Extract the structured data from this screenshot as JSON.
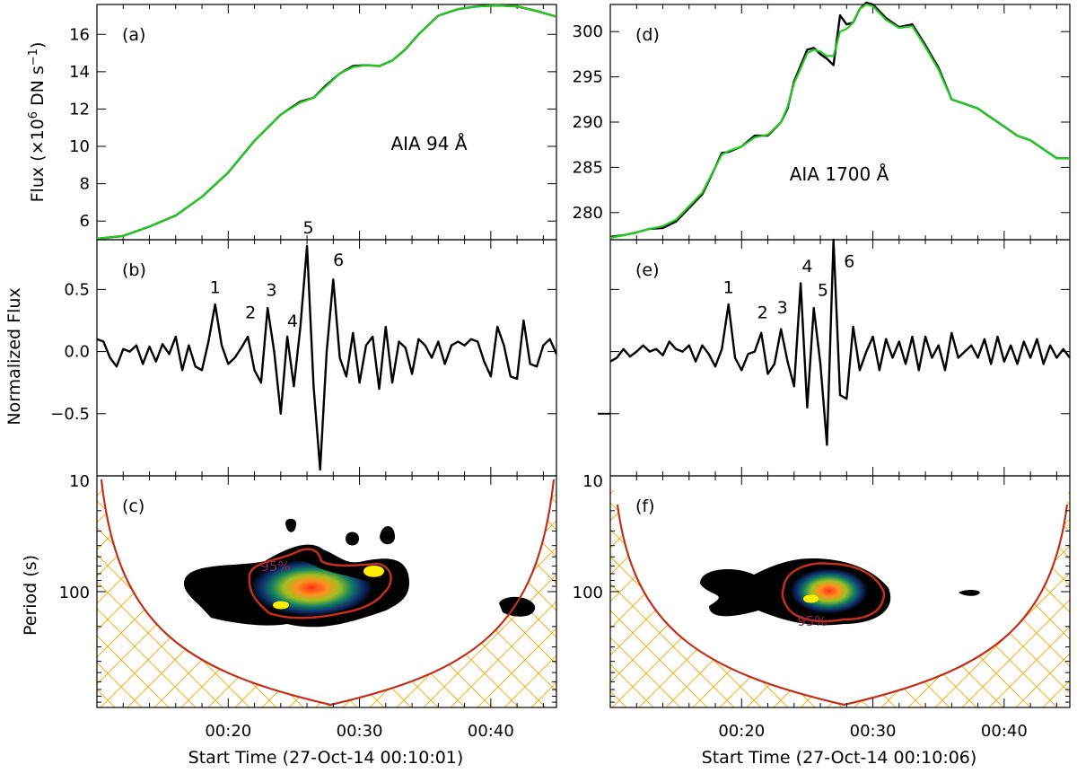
{
  "figure": {
    "shared_ylabels": {
      "top": "Flux (×10",
      "top_sup1": "6",
      "top_mid": " DN s",
      "top_sup2": "−1",
      "top_end": ")",
      "middle": "Normalized Flux",
      "bottom": "Period (s)"
    },
    "colors": {
      "raw_line": "#000000",
      "smooth_line": "#22cc22",
      "coi_line": "#c0301a",
      "hatch": "#f0b020",
      "contour_95": "#c0301a",
      "frame": "#000000"
    }
  },
  "chart_data": [
    {
      "panel": "a",
      "label": "(a)",
      "type": "line",
      "annotation": "AIA 94 Å",
      "ylim": [
        5,
        17.6
      ],
      "yticks": [
        6,
        8,
        10,
        12,
        14,
        16
      ],
      "ytick_labels": [
        "6",
        "8",
        "10",
        "12",
        "14",
        "16"
      ],
      "xlim": [
        10.0,
        45.0
      ],
      "series": [
        {
          "role": "raw",
          "x": [
            10.0,
            12.0,
            14.0,
            16.0,
            18.0,
            20.0,
            22.0,
            24.0,
            25.5,
            26.5,
            27.5,
            28.5,
            29.5,
            30.5,
            31.5,
            32.5,
            33.5,
            34.5,
            36.0,
            37.5,
            39.0,
            40.5,
            42.0,
            43.5,
            45.0
          ],
          "y": [
            5.05,
            5.2,
            5.7,
            6.3,
            7.3,
            8.6,
            10.3,
            11.7,
            12.4,
            12.6,
            13.3,
            13.9,
            14.3,
            14.35,
            14.3,
            14.6,
            15.2,
            16.0,
            17.0,
            17.35,
            17.5,
            17.55,
            17.5,
            17.25,
            16.95
          ]
        },
        {
          "role": "smoothed",
          "x": [
            10.0,
            12.0,
            14.0,
            16.0,
            18.0,
            20.0,
            22.0,
            24.0,
            25.5,
            26.5,
            27.5,
            28.5,
            29.5,
            30.5,
            31.5,
            32.5,
            33.5,
            34.5,
            36.0,
            37.5,
            39.0,
            40.5,
            42.0,
            43.5,
            45.0
          ],
          "y": [
            5.05,
            5.2,
            5.7,
            6.3,
            7.3,
            8.6,
            10.3,
            11.7,
            12.35,
            12.6,
            13.25,
            13.9,
            14.25,
            14.35,
            14.3,
            14.6,
            15.2,
            16.0,
            17.0,
            17.35,
            17.5,
            17.55,
            17.5,
            17.25,
            16.95
          ]
        }
      ]
    },
    {
      "panel": "b",
      "label": "(b)",
      "type": "line",
      "ylim": [
        -1.0,
        0.9
      ],
      "yticks": [
        -0.5,
        0.0,
        0.5
      ],
      "ytick_labels": [
        "−0.5",
        "0.0",
        "0.5"
      ],
      "xlim": [
        10.0,
        45.0
      ],
      "peak_labels": [
        {
          "text": "1",
          "x": 19.0,
          "y": 0.44
        },
        {
          "text": "2",
          "x": 21.7,
          "y": 0.24
        },
        {
          "text": "3",
          "x": 23.3,
          "y": 0.42
        },
        {
          "text": "4",
          "x": 24.9,
          "y": 0.17
        },
        {
          "text": "5",
          "x": 26.1,
          "y": 0.92
        },
        {
          "text": "6",
          "x": 28.4,
          "y": 0.66
        }
      ],
      "series": [
        {
          "name": "",
          "x": [
            10.0,
            10.5,
            11.0,
            11.5,
            12.0,
            12.5,
            13.0,
            13.5,
            14.0,
            14.5,
            15.0,
            15.5,
            16.0,
            16.5,
            17.0,
            17.5,
            18.0,
            18.5,
            19.0,
            19.5,
            20.0,
            20.5,
            21.0,
            21.5,
            22.0,
            22.5,
            23.0,
            23.5,
            24.0,
            24.5,
            25.0,
            25.5,
            26.0,
            26.5,
            27.0,
            27.5,
            28.0,
            28.5,
            29.0,
            29.5,
            30.0,
            30.5,
            31.0,
            31.5,
            32.0,
            32.5,
            33.0,
            33.5,
            34.0,
            34.5,
            35.0,
            35.5,
            36.0,
            36.5,
            37.0,
            37.5,
            38.0,
            38.5,
            39.0,
            39.5,
            40.0,
            40.5,
            41.0,
            41.5,
            42.0,
            42.5,
            43.0,
            43.5,
            44.0,
            44.5,
            45.0
          ],
          "y": [
            0.1,
            0.08,
            -0.05,
            -0.12,
            0.02,
            0.0,
            0.05,
            -0.1,
            0.04,
            -0.08,
            0.06,
            -0.02,
            0.12,
            -0.15,
            0.05,
            -0.12,
            -0.15,
            0.08,
            0.38,
            0.05,
            -0.1,
            -0.05,
            0.03,
            0.12,
            -0.15,
            -0.25,
            0.35,
            0.0,
            -0.5,
            0.12,
            -0.28,
            0.2,
            0.85,
            -0.28,
            -0.95,
            0.0,
            0.58,
            -0.05,
            -0.2,
            0.15,
            -0.25,
            0.05,
            0.12,
            -0.3,
            0.2,
            -0.25,
            0.08,
            0.03,
            -0.18,
            0.1,
            0.05,
            -0.05,
            0.08,
            -0.1,
            0.05,
            0.08,
            0.05,
            0.1,
            0.08,
            -0.08,
            -0.2,
            0.2,
            0.05,
            -0.2,
            -0.22,
            0.25,
            -0.1,
            -0.12,
            0.05,
            0.1,
            -0.02
          ]
        }
      ]
    },
    {
      "panel": "c",
      "label": "(c)",
      "type": "heatmap",
      "description_level": "95%",
      "ylim_log": [
        10,
        1000
      ],
      "yticks": [
        10,
        100
      ],
      "ytick_labels": [
        "10",
        "100"
      ],
      "xlim": [
        10.0,
        45.0
      ],
      "xticks": [
        20,
        30,
        40
      ],
      "xtick_labels": [
        "00:20",
        "00:30",
        "00:40"
      ],
      "xlabel": "Start Time (27-Oct-14 00:10:01)",
      "coi_bottom_time": 27.8
    },
    {
      "panel": "d",
      "label": "(d)",
      "type": "line",
      "annotation": "AIA 1700 Å",
      "ylim": [
        277,
        303
      ],
      "yticks": [
        280,
        285,
        290,
        295,
        300
      ],
      "ytick_labels": [
        "280",
        "285",
        "290",
        "295",
        "300"
      ],
      "xlim": [
        10.0,
        45.0
      ],
      "series": [
        {
          "role": "raw",
          "x": [
            10.0,
            11.0,
            12.0,
            13.0,
            14.0,
            15.0,
            16.0,
            17.0,
            18.0,
            18.5,
            19.0,
            20.0,
            21.0,
            22.0,
            23.0,
            23.5,
            24.0,
            25.0,
            25.5,
            26.0,
            26.5,
            27.0,
            27.5,
            28.0,
            28.5,
            29.0,
            29.5,
            30.0,
            31.0,
            32.0,
            33.0,
            34.0,
            35.0,
            36.0,
            37.0,
            38.0,
            39.0,
            40.0,
            41.0,
            42.0,
            43.0,
            44.0,
            45.0
          ],
          "y": [
            277.3,
            277.5,
            277.8,
            278.2,
            278.3,
            279.0,
            280.5,
            282.0,
            285.0,
            286.6,
            286.7,
            287.3,
            288.5,
            288.5,
            290.0,
            291.5,
            294.5,
            298.0,
            298.2,
            297.5,
            297.0,
            296.3,
            301.8,
            300.8,
            301.0,
            302.5,
            303.2,
            303.0,
            301.5,
            300.5,
            300.8,
            298.5,
            296.0,
            292.5,
            292.0,
            291.5,
            290.5,
            289.5,
            288.5,
            288.0,
            287.0,
            286.0,
            286.0
          ]
        },
        {
          "role": "smoothed",
          "x": [
            10.0,
            11.0,
            12.0,
            13.0,
            14.0,
            15.0,
            16.0,
            17.0,
            18.0,
            18.5,
            19.0,
            20.0,
            21.0,
            22.0,
            23.0,
            23.5,
            24.0,
            25.0,
            25.5,
            26.0,
            26.5,
            27.0,
            27.5,
            28.0,
            28.5,
            29.0,
            29.5,
            30.0,
            31.0,
            32.0,
            33.0,
            34.0,
            35.0,
            36.0,
            37.0,
            38.0,
            39.0,
            40.0,
            41.0,
            42.0,
            43.0,
            44.0,
            45.0
          ],
          "y": [
            277.2,
            277.5,
            277.8,
            278.2,
            278.5,
            279.2,
            280.7,
            282.2,
            285.0,
            286.4,
            286.8,
            287.3,
            288.3,
            288.6,
            290.0,
            291.7,
            294.3,
            297.6,
            298.0,
            297.8,
            297.3,
            297.3,
            300.0,
            300.3,
            301.0,
            302.5,
            303.0,
            302.8,
            301.3,
            300.4,
            300.6,
            298.3,
            295.8,
            292.5,
            292.0,
            291.5,
            290.5,
            289.5,
            288.5,
            288.0,
            287.0,
            286.0,
            286.0
          ]
        }
      ]
    },
    {
      "panel": "e",
      "label": "(e)",
      "type": "line",
      "ylim": [
        -1.0,
        0.9
      ],
      "yticks": [
        -0.5,
        0.0,
        0.5
      ],
      "ytick_labels": [
        "",
        "",
        ""
      ],
      "xlim": [
        10.0,
        45.0
      ],
      "peak_labels": [
        {
          "text": "1",
          "x": 19.0,
          "y": 0.44
        },
        {
          "text": "2",
          "x": 21.6,
          "y": 0.24
        },
        {
          "text": "3",
          "x": 23.1,
          "y": 0.28
        },
        {
          "text": "4",
          "x": 25.0,
          "y": 0.61
        },
        {
          "text": "5",
          "x": 26.2,
          "y": 0.42
        },
        {
          "text": "6",
          "x": 28.2,
          "y": 0.65
        }
      ],
      "series": [
        {
          "name": "",
          "x": [
            10.0,
            10.5,
            11.0,
            11.5,
            12.0,
            12.5,
            13.0,
            13.5,
            14.0,
            14.5,
            15.0,
            15.5,
            16.0,
            16.5,
            17.0,
            17.5,
            18.0,
            18.5,
            19.0,
            19.5,
            20.0,
            20.5,
            21.0,
            21.5,
            22.0,
            22.5,
            23.0,
            23.5,
            24.0,
            24.5,
            25.0,
            25.5,
            26.0,
            26.5,
            27.0,
            27.5,
            28.0,
            28.5,
            29.0,
            29.5,
            30.0,
            30.5,
            31.0,
            31.5,
            32.0,
            32.5,
            33.0,
            33.5,
            34.0,
            34.5,
            35.0,
            35.5,
            36.0,
            36.5,
            37.0,
            37.5,
            38.0,
            38.5,
            39.0,
            39.5,
            40.0,
            40.5,
            41.0,
            41.5,
            42.0,
            42.5,
            43.0,
            43.5,
            44.0,
            44.5,
            45.0
          ],
          "y": [
            -0.08,
            -0.05,
            0.02,
            -0.04,
            0.0,
            0.05,
            0.0,
            0.02,
            -0.03,
            0.08,
            0.02,
            0.0,
            0.05,
            -0.08,
            0.05,
            -0.02,
            -0.12,
            0.02,
            0.38,
            -0.05,
            -0.15,
            -0.02,
            0.0,
            0.15,
            -0.18,
            -0.1,
            0.18,
            -0.08,
            -0.28,
            0.55,
            -0.45,
            0.35,
            -0.1,
            -0.75,
            0.9,
            -0.35,
            -0.38,
            0.2,
            -0.15,
            0.0,
            0.12,
            -0.15,
            0.1,
            -0.05,
            0.08,
            -0.1,
            0.12,
            -0.15,
            0.12,
            -0.05,
            0.05,
            -0.15,
            0.15,
            -0.05,
            0.0,
            0.05,
            -0.05,
            0.1,
            -0.1,
            0.12,
            -0.08,
            0.05,
            -0.1,
            0.08,
            -0.05,
            0.1,
            -0.1,
            0.05,
            -0.05,
            0.02,
            -0.05
          ]
        }
      ]
    },
    {
      "panel": "f",
      "label": "(f)",
      "type": "heatmap",
      "description_level": "95%",
      "ylim_log": [
        10,
        1000
      ],
      "yticks": [
        10,
        100
      ],
      "ytick_labels": [
        "10",
        "100"
      ],
      "xlim": [
        10.0,
        45.0
      ],
      "xticks": [
        20,
        30,
        40
      ],
      "xtick_labels": [
        "00:20",
        "00:30",
        "00:40"
      ],
      "xlabel": "Start Time (27-Oct-14 00:10:06)",
      "coi_bottom_time": 27.8
    }
  ]
}
